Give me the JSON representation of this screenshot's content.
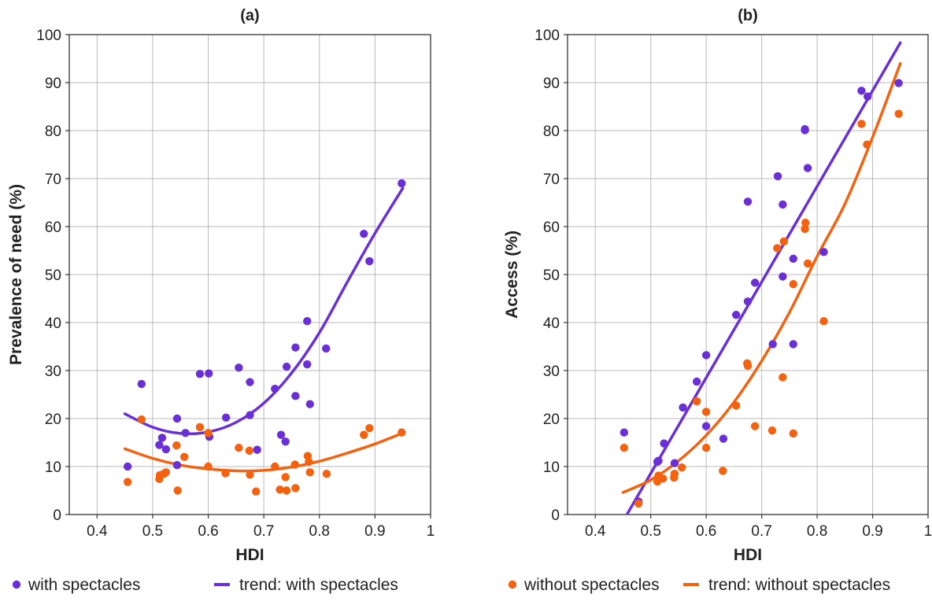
{
  "colors": {
    "with": "#6a2fd6",
    "without": "#f4620f"
  },
  "legend": [
    {
      "label": "with spectacles",
      "kind": "dot",
      "series": "with"
    },
    {
      "label": "trend: with spectacles",
      "kind": "line",
      "series": "with"
    },
    {
      "label": "without spectacles",
      "kind": "dot",
      "series": "without"
    },
    {
      "label": "trend: without spectacles",
      "kind": "line",
      "series": "without"
    }
  ],
  "chart_data": [
    {
      "type": "scatter",
      "title": "(a)",
      "xlabel": "HDI",
      "ylabel": "Prevalence of need (%)",
      "xlim": [
        0.35,
        1.0
      ],
      "ylim": [
        0,
        100
      ],
      "xticks": [
        "0.4",
        "0.5",
        "0.6",
        "0.7",
        "0.8",
        "0.9",
        "1"
      ],
      "yticks": [
        "0",
        "10",
        "20",
        "30",
        "40",
        "50",
        "60",
        "70",
        "80",
        "90",
        "100"
      ],
      "grid": true,
      "series": [
        {
          "name": "with spectacles",
          "kind": "points",
          "color": "#6a2fd6",
          "points": [
            [
              0.455,
              10
            ],
            [
              0.48,
              27.2
            ],
            [
              0.512,
              14.5
            ],
            [
              0.517,
              16
            ],
            [
              0.524,
              13.6
            ],
            [
              0.544,
              20
            ],
            [
              0.544,
              10.3
            ],
            [
              0.559,
              17
            ],
            [
              0.585,
              29.3
            ],
            [
              0.601,
              29.4
            ],
            [
              0.602,
              16.2
            ],
            [
              0.632,
              20.2
            ],
            [
              0.655,
              30.6
            ],
            [
              0.675,
              27.6
            ],
            [
              0.675,
              20.7
            ],
            [
              0.688,
              13.5
            ],
            [
              0.72,
              26.2
            ],
            [
              0.731,
              16.6
            ],
            [
              0.739,
              15.2
            ],
            [
              0.741,
              30.8
            ],
            [
              0.757,
              34.8
            ],
            [
              0.757,
              24.7
            ],
            [
              0.778,
              40.3
            ],
            [
              0.778,
              31.3
            ],
            [
              0.783,
              23
            ],
            [
              0.812,
              34.6
            ],
            [
              0.88,
              58.5
            ],
            [
              0.89,
              52.8
            ],
            [
              0.948,
              69
            ]
          ]
        },
        {
          "name": "trend: with spectacles",
          "kind": "line",
          "color": "#6a2fd6",
          "points": [
            [
              0.45,
              21
            ],
            [
              0.5,
              18.2
            ],
            [
              0.55,
              16.9
            ],
            [
              0.6,
              17.2
            ],
            [
              0.65,
              19.2
            ],
            [
              0.7,
              23.2
            ],
            [
              0.75,
              29.5
            ],
            [
              0.8,
              37.9
            ],
            [
              0.85,
              48.4
            ],
            [
              0.9,
              58.6
            ],
            [
              0.95,
              68
            ]
          ]
        },
        {
          "name": "without spectacles",
          "kind": "points",
          "color": "#f4620f",
          "points": [
            [
              0.455,
              6.8
            ],
            [
              0.48,
              19.8
            ],
            [
              0.512,
              7.4
            ],
            [
              0.513,
              8.2
            ],
            [
              0.52,
              8.5
            ],
            [
              0.524,
              8.8
            ],
            [
              0.543,
              14.4
            ],
            [
              0.545,
              5
            ],
            [
              0.557,
              12
            ],
            [
              0.585,
              18.2
            ],
            [
              0.6,
              17
            ],
            [
              0.6,
              10
            ],
            [
              0.631,
              8.6
            ],
            [
              0.655,
              13.9
            ],
            [
              0.674,
              13.3
            ],
            [
              0.675,
              8.3
            ],
            [
              0.686,
              4.8
            ],
            [
              0.72,
              10
            ],
            [
              0.729,
              5.2
            ],
            [
              0.739,
              7.8
            ],
            [
              0.741,
              5
            ],
            [
              0.756,
              10.4
            ],
            [
              0.757,
              5.5
            ],
            [
              0.779,
              12.2
            ],
            [
              0.781,
              11
            ],
            [
              0.783,
              8.8
            ],
            [
              0.813,
              8.5
            ],
            [
              0.88,
              16.6
            ],
            [
              0.89,
              18
            ],
            [
              0.948,
              17.1
            ]
          ]
        },
        {
          "name": "trend: without spectacles",
          "kind": "line",
          "color": "#f4620f",
          "points": [
            [
              0.45,
              13.7
            ],
            [
              0.5,
              11.7
            ],
            [
              0.55,
              10.3
            ],
            [
              0.6,
              9.5
            ],
            [
              0.65,
              9.1
            ],
            [
              0.7,
              9.2
            ],
            [
              0.75,
              9.9
            ],
            [
              0.8,
              11.1
            ],
            [
              0.85,
              12.8
            ],
            [
              0.9,
              14.7
            ],
            [
              0.95,
              17
            ]
          ]
        }
      ]
    },
    {
      "type": "scatter",
      "title": "(b)",
      "xlabel": "HDI",
      "ylabel": "Access (%)",
      "xlim": [
        0.35,
        1.0
      ],
      "ylim": [
        0,
        100
      ],
      "xticks": [
        "0.4",
        "0.5",
        "0.6",
        "0.7",
        "0.8",
        "0.9",
        "1"
      ],
      "yticks": [
        "0",
        "10",
        "20",
        "30",
        "40",
        "50",
        "60",
        "70",
        "80",
        "90",
        "100"
      ],
      "grid": true,
      "series": [
        {
          "name": "with spectacles",
          "kind": "points",
          "color": "#6a2fd6",
          "points": [
            [
              0.452,
              17.1
            ],
            [
              0.478,
              2.7
            ],
            [
              0.512,
              11
            ],
            [
              0.514,
              11.2
            ],
            [
              0.524,
              14.8
            ],
            [
              0.543,
              10.7
            ],
            [
              0.558,
              22.3
            ],
            [
              0.583,
              27.7
            ],
            [
              0.6,
              33.2
            ],
            [
              0.6,
              18.4
            ],
            [
              0.631,
              15.8
            ],
            [
              0.654,
              41.6
            ],
            [
              0.675,
              65.2
            ],
            [
              0.675,
              44.4
            ],
            [
              0.688,
              48.3
            ],
            [
              0.72,
              35.5
            ],
            [
              0.729,
              70.5
            ],
            [
              0.738,
              64.6
            ],
            [
              0.738,
              49.6
            ],
            [
              0.757,
              53.3
            ],
            [
              0.757,
              35.5
            ],
            [
              0.778,
              80.1
            ],
            [
              0.778,
              80.3
            ],
            [
              0.783,
              72.2
            ],
            [
              0.812,
              54.7
            ],
            [
              0.88,
              88.3
            ],
            [
              0.891,
              87.1
            ],
            [
              0.947,
              89.9
            ]
          ]
        },
        {
          "name": "trend: with spectacles",
          "kind": "line",
          "color": "#6a2fd6",
          "points": [
            [
              0.447,
              -2
            ],
            [
              0.95,
              98.3
            ]
          ]
        },
        {
          "name": "without spectacles",
          "kind": "points",
          "color": "#f4620f",
          "points": [
            [
              0.452,
              13.9
            ],
            [
              0.478,
              2.3
            ],
            [
              0.512,
              6.9
            ],
            [
              0.514,
              8.1
            ],
            [
              0.522,
              7.5
            ],
            [
              0.542,
              7.7
            ],
            [
              0.543,
              8.5
            ],
            [
              0.556,
              9.8
            ],
            [
              0.583,
              23.6
            ],
            [
              0.6,
              21.4
            ],
            [
              0.6,
              13.9
            ],
            [
              0.63,
              9.1
            ],
            [
              0.654,
              22.7
            ],
            [
              0.674,
              31.5
            ],
            [
              0.675,
              31
            ],
            [
              0.688,
              18.4
            ],
            [
              0.719,
              17.5
            ],
            [
              0.728,
              55.5
            ],
            [
              0.738,
              28.6
            ],
            [
              0.74,
              56.9
            ],
            [
              0.757,
              48
            ],
            [
              0.757,
              16.9
            ],
            [
              0.778,
              59.5
            ],
            [
              0.779,
              60.8
            ],
            [
              0.783,
              52.3
            ],
            [
              0.812,
              40.3
            ],
            [
              0.88,
              81.4
            ],
            [
              0.89,
              77.1
            ],
            [
              0.947,
              83.5
            ]
          ]
        },
        {
          "name": "trend: without spectacles",
          "kind": "line",
          "color": "#f4620f",
          "points": [
            [
              0.45,
              4.6
            ],
            [
              0.5,
              7.2
            ],
            [
              0.55,
              11.2
            ],
            [
              0.6,
              16.5
            ],
            [
              0.65,
              23.4
            ],
            [
              0.7,
              32
            ],
            [
              0.75,
              42.1
            ],
            [
              0.8,
              53.8
            ],
            [
              0.85,
              64.7
            ],
            [
              0.9,
              78.6
            ],
            [
              0.95,
              94
            ]
          ]
        }
      ]
    }
  ]
}
